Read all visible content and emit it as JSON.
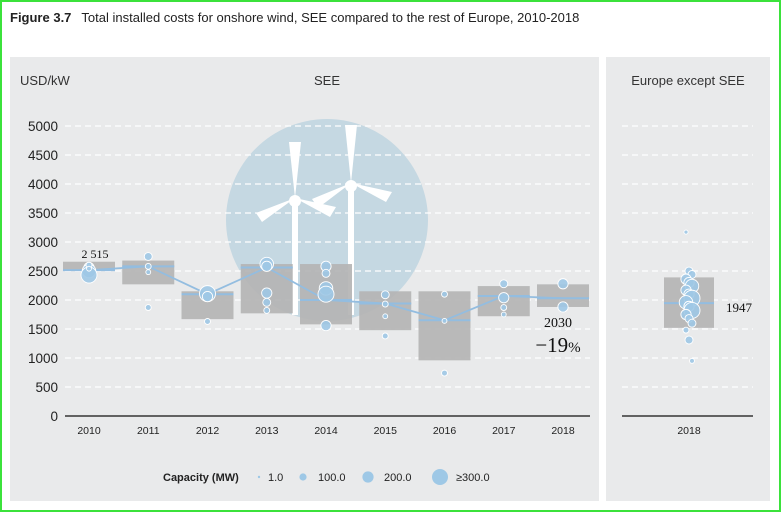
{
  "figure": {
    "label": "Figure 3.7",
    "title": "Total installed costs for onshore wind, SEE compared to the rest of Europe, 2010-2018"
  },
  "chart_data": {
    "type": "box-scatter-line",
    "ylabel": "USD/kW",
    "ylim": [
      0,
      5000
    ],
    "yticks": [
      "0",
      "500",
      "1000",
      "1500",
      "2000",
      "2500",
      "3000",
      "3500",
      "4000",
      "4500",
      "5000"
    ],
    "panels": [
      {
        "title": "SEE",
        "categories": [
          "2010",
          "2011",
          "2012",
          "2013",
          "2014",
          "2015",
          "2016",
          "2017",
          "2018"
        ],
        "boxes": [
          {
            "low": 2520,
            "high": 2660
          },
          {
            "low": 2270,
            "high": 2680
          },
          {
            "low": 1670,
            "high": 2150
          },
          {
            "low": 1770,
            "high": 2620
          },
          {
            "low": 1580,
            "high": 2620
          },
          {
            "low": 1480,
            "high": 2150
          },
          {
            "low": 960,
            "high": 2150
          },
          {
            "low": 1720,
            "high": 2240
          },
          {
            "low": 1880,
            "high": 2270
          }
        ],
        "weighted_average": [
          2515,
          2580,
          2100,
          2560,
          2000,
          1940,
          1650,
          2070,
          2030
        ],
        "projects": [
          [
            [
              2560,
              100
            ],
            [
              2500,
              200
            ],
            [
              2430,
              300
            ],
            [
              2600,
              20
            ],
            [
              2540,
              10
            ]
          ],
          [
            [
              2750,
              50
            ],
            [
              2580,
              20
            ],
            [
              2480,
              10
            ],
            [
              1870,
              20
            ]
          ],
          [
            [
              2110,
              300
            ],
            [
              2060,
              100
            ],
            [
              1630,
              20
            ]
          ],
          [
            [
              2620,
              200
            ],
            [
              2580,
              100
            ],
            [
              2120,
              100
            ],
            [
              1960,
              50
            ],
            [
              1820,
              20
            ]
          ],
          [
            [
              2580,
              100
            ],
            [
              2460,
              50
            ],
            [
              2200,
              200
            ],
            [
              2100,
              300
            ],
            [
              1560,
              100
            ]
          ],
          [
            [
              2090,
              50
            ],
            [
              1930,
              20
            ],
            [
              1720,
              10
            ],
            [
              1380,
              20
            ]
          ],
          [
            [
              2100,
              20
            ],
            [
              1640,
              10
            ],
            [
              740,
              20
            ]
          ],
          [
            [
              2280,
              50
            ],
            [
              2040,
              100
            ],
            [
              1870,
              20
            ],
            [
              1750,
              10
            ]
          ],
          [
            [
              2280,
              100
            ],
            [
              1880,
              100
            ]
          ]
        ],
        "annotation": {
          "value": "2030",
          "change": "−19",
          "unit": "%"
        }
      },
      {
        "title": "Europe except SEE",
        "categories": [
          "2018"
        ],
        "boxes": [
          {
            "low": 1520,
            "high": 2390
          }
        ],
        "weighted_average": [
          1947
        ],
        "projects": [
          [
            [
              3170,
              5
            ],
            [
              2500,
              50
            ],
            [
              2440,
              50
            ],
            [
              2360,
              100
            ],
            [
              2300,
              100
            ],
            [
              2240,
              200
            ],
            [
              2170,
              100
            ],
            [
              2100,
              100
            ],
            [
              2030,
              300
            ],
            [
              1960,
              200
            ],
            [
              1890,
              100
            ],
            [
              1820,
              300
            ],
            [
              1750,
              100
            ],
            [
              1680,
              50
            ],
            [
              1600,
              50
            ],
            [
              1480,
              20
            ],
            [
              1310,
              50
            ],
            [
              950,
              10
            ]
          ]
        ],
        "annotation": {
          "value": "1947"
        }
      }
    ],
    "start_label": "2 515",
    "legend": {
      "title": "Capacity (MW)",
      "items": [
        "1.0",
        "100.0",
        "200.0",
        "≥300.0"
      ]
    },
    "colors": {
      "panel_bg": "#e9eaeb",
      "box": "#b4b4b4",
      "bubble": "#9ec8e6",
      "line": "#93bde0",
      "watermark": "#c5d8e2"
    }
  }
}
